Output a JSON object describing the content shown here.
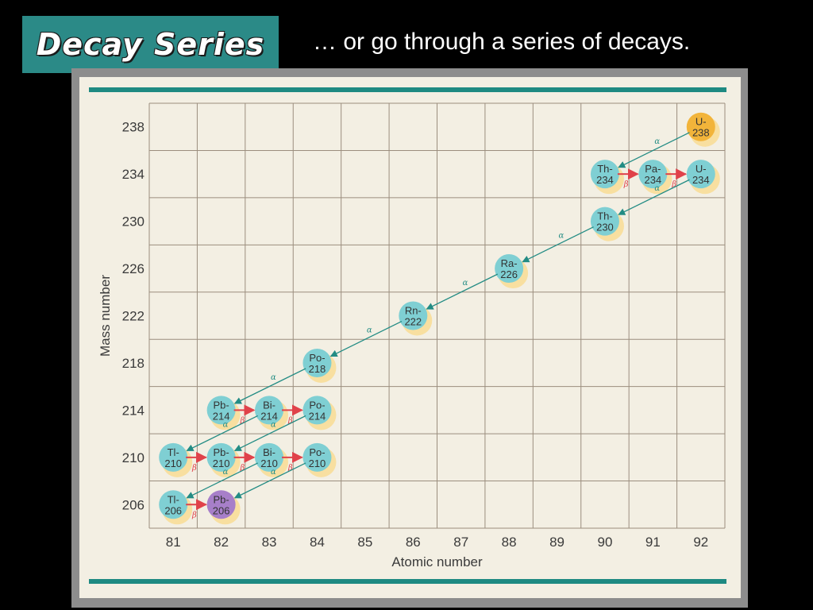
{
  "slide": {
    "title": "Decay Series",
    "subtitle": "… or go through a series of decays."
  },
  "colors": {
    "slide_background": "#000000",
    "title_box": "#2b8a87",
    "figure_background": "#f3efe3",
    "figure_rule": "#1e8a82",
    "grid": "#9b8e7e",
    "nuclide": "#7fcfd3",
    "nuclide_halo": "#f8dfa0",
    "uranium_start": "#f2b43a",
    "lead_end": "#a77fc9",
    "alpha_arrow": "#238c84",
    "beta_arrow": "#e0424a",
    "label_text": "#3a3a3a"
  },
  "chart_data": {
    "type": "decay-series",
    "xlabel": "Atomic number",
    "ylabel": "Mass number",
    "x_ticks": [
      81,
      82,
      83,
      84,
      85,
      86,
      87,
      88,
      89,
      90,
      91,
      92
    ],
    "y_ticks": [
      238,
      234,
      230,
      226,
      222,
      218,
      214,
      210,
      206
    ],
    "grid": true,
    "nuclides": [
      {
        "symbol": "U-",
        "mass": "238",
        "z": 92,
        "a": 238,
        "kind": "start"
      },
      {
        "symbol": "Th-",
        "mass": "234",
        "z": 90,
        "a": 234,
        "kind": "normal"
      },
      {
        "symbol": "Pa-",
        "mass": "234",
        "z": 91,
        "a": 234,
        "kind": "normal"
      },
      {
        "symbol": "U-",
        "mass": "234",
        "z": 92,
        "a": 234,
        "kind": "normal"
      },
      {
        "symbol": "Th-",
        "mass": "230",
        "z": 90,
        "a": 230,
        "kind": "normal"
      },
      {
        "symbol": "Ra-",
        "mass": "226",
        "z": 88,
        "a": 226,
        "kind": "normal"
      },
      {
        "symbol": "Rn-",
        "mass": "222",
        "z": 86,
        "a": 222,
        "kind": "normal"
      },
      {
        "symbol": "Po-",
        "mass": "218",
        "z": 84,
        "a": 218,
        "kind": "normal"
      },
      {
        "symbol": "Pb-",
        "mass": "214",
        "z": 82,
        "a": 214,
        "kind": "normal"
      },
      {
        "symbol": "Bi-",
        "mass": "214",
        "z": 83,
        "a": 214,
        "kind": "normal"
      },
      {
        "symbol": "Po-",
        "mass": "214",
        "z": 84,
        "a": 214,
        "kind": "normal"
      },
      {
        "symbol": "Tl-",
        "mass": "210",
        "z": 81,
        "a": 210,
        "kind": "normal"
      },
      {
        "symbol": "Pb-",
        "mass": "210",
        "z": 82,
        "a": 210,
        "kind": "normal"
      },
      {
        "symbol": "Bi-",
        "mass": "210",
        "z": 83,
        "a": 210,
        "kind": "normal"
      },
      {
        "symbol": "Po-",
        "mass": "210",
        "z": 84,
        "a": 210,
        "kind": "normal"
      },
      {
        "symbol": "Tl-",
        "mass": "206",
        "z": 81,
        "a": 206,
        "kind": "normal"
      },
      {
        "symbol": "Pb-",
        "mass": "206",
        "z": 82,
        "a": 206,
        "kind": "end"
      }
    ],
    "decays": [
      {
        "type": "alpha",
        "label": "α",
        "from": [
          92,
          238
        ],
        "to": [
          90,
          234
        ]
      },
      {
        "type": "beta",
        "label": "β",
        "from": [
          90,
          234
        ],
        "to": [
          91,
          234
        ]
      },
      {
        "type": "beta",
        "label": "β",
        "from": [
          91,
          234
        ],
        "to": [
          92,
          234
        ]
      },
      {
        "type": "alpha",
        "label": "α",
        "from": [
          92,
          234
        ],
        "to": [
          90,
          230
        ]
      },
      {
        "type": "alpha",
        "label": "α",
        "from": [
          90,
          230
        ],
        "to": [
          88,
          226
        ]
      },
      {
        "type": "alpha",
        "label": "α",
        "from": [
          88,
          226
        ],
        "to": [
          86,
          222
        ]
      },
      {
        "type": "alpha",
        "label": "α",
        "from": [
          86,
          222
        ],
        "to": [
          84,
          218
        ]
      },
      {
        "type": "alpha",
        "label": "α",
        "from": [
          84,
          218
        ],
        "to": [
          82,
          214
        ]
      },
      {
        "type": "beta",
        "label": "β",
        "from": [
          82,
          214
        ],
        "to": [
          83,
          214
        ]
      },
      {
        "type": "beta",
        "label": "β",
        "from": [
          83,
          214
        ],
        "to": [
          84,
          214
        ]
      },
      {
        "type": "alpha",
        "label": "α",
        "from": [
          83,
          214
        ],
        "to": [
          81,
          210
        ]
      },
      {
        "type": "alpha",
        "label": "α",
        "from": [
          84,
          214
        ],
        "to": [
          82,
          210
        ]
      },
      {
        "type": "beta",
        "label": "β",
        "from": [
          81,
          210
        ],
        "to": [
          82,
          210
        ]
      },
      {
        "type": "beta",
        "label": "β",
        "from": [
          82,
          210
        ],
        "to": [
          83,
          210
        ]
      },
      {
        "type": "beta",
        "label": "β",
        "from": [
          83,
          210
        ],
        "to": [
          84,
          210
        ]
      },
      {
        "type": "alpha",
        "label": "α",
        "from": [
          83,
          210
        ],
        "to": [
          81,
          206
        ]
      },
      {
        "type": "alpha",
        "label": "α",
        "from": [
          84,
          210
        ],
        "to": [
          82,
          206
        ]
      },
      {
        "type": "beta",
        "label": "β",
        "from": [
          81,
          206
        ],
        "to": [
          82,
          206
        ]
      }
    ]
  }
}
